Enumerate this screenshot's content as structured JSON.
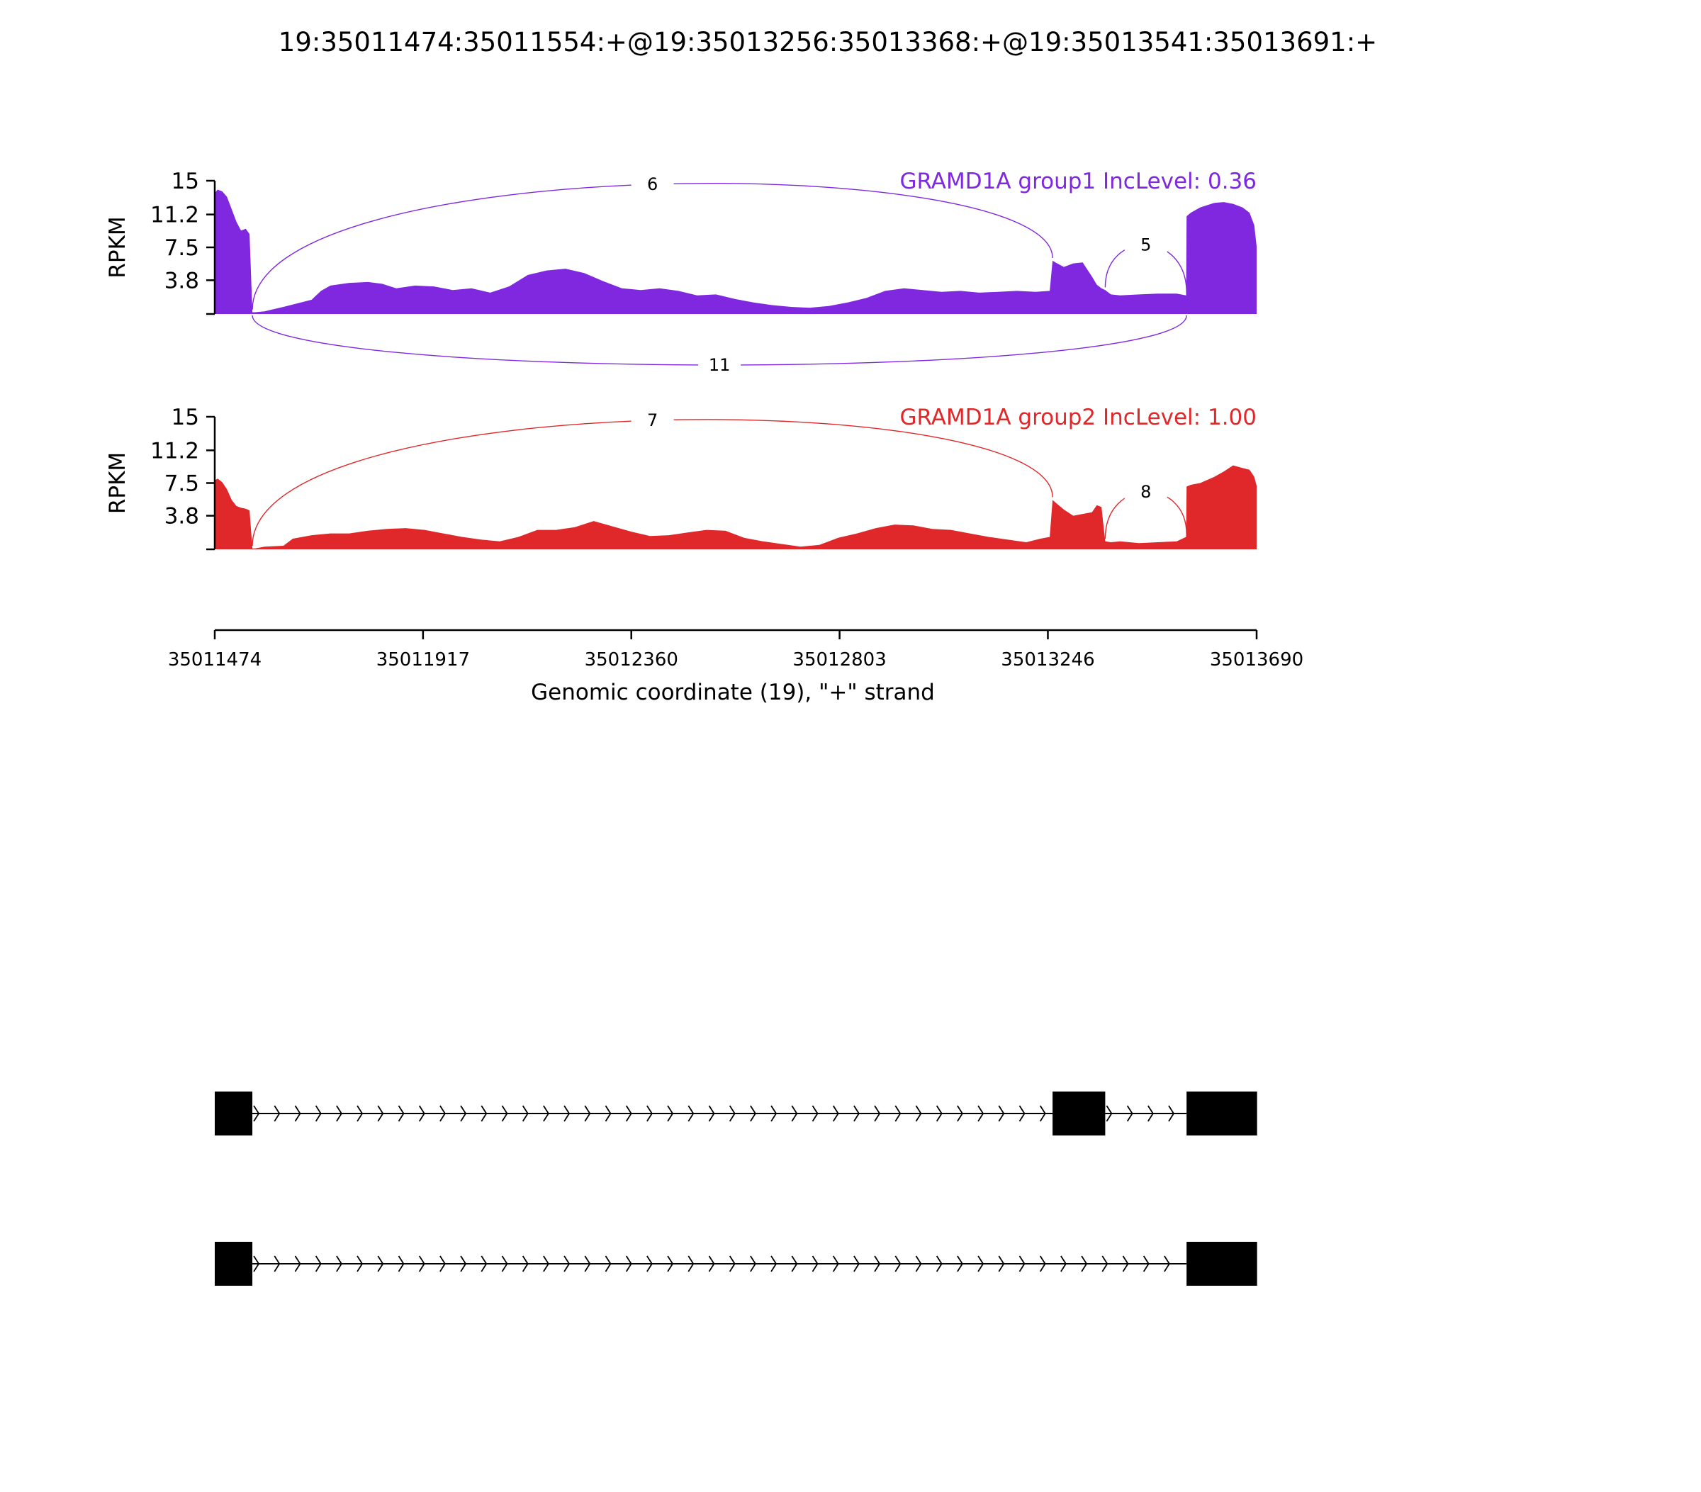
{
  "title": "19:35011474:35011554:+@19:35013256:35013368:+@19:35013541:35013691:+",
  "colors": {
    "group1": "#7f28e0",
    "group2": "#e0282a",
    "axis": "#000000",
    "exon": "#000000"
  },
  "chart_data": {
    "type": "area",
    "subtype": "sashimi",
    "xlabel": "Genomic coordinate (19), \"+\" strand",
    "xlim": [
      35011474,
      35013690
    ],
    "xticks": [
      35011474,
      35011917,
      35012360,
      35012803,
      35013246,
      35013690
    ],
    "xtick_labels": [
      "35011474",
      "35011917",
      "35012360",
      "35012803",
      "35013246",
      "35013690"
    ],
    "ylabel": "RPKM",
    "ylim": [
      0,
      15
    ],
    "yticks": [
      3.8,
      7.5,
      11.2,
      15
    ],
    "ytick_labels": [
      "3.8",
      "7.5",
      "11.2",
      "15"
    ],
    "exons": [
      [
        35011474,
        35011554
      ],
      [
        35013256,
        35013368
      ],
      [
        35013541,
        35013691
      ]
    ],
    "tracks": [
      {
        "label": "GRAMD1A group1 IncLevel: 0.36",
        "color": "#7f28e0",
        "coverage_x": [
          35011474,
          35011480,
          35011490,
          35011500,
          35011510,
          35011520,
          35011530,
          35011540,
          35011548,
          35011554,
          35011560,
          35011580,
          35011620,
          35011680,
          35011700,
          35011720,
          35011760,
          35011800,
          35011830,
          35011860,
          35011900,
          35011940,
          35011980,
          35012020,
          35012060,
          35012100,
          35012140,
          35012180,
          35012220,
          35012260,
          35012300,
          35012340,
          35012380,
          35012420,
          35012460,
          35012500,
          35012540,
          35012580,
          35012620,
          35012660,
          35012700,
          35012740,
          35012780,
          35012820,
          35012860,
          35012900,
          35012940,
          35012980,
          35013020,
          35013060,
          35013100,
          35013140,
          35013180,
          35013220,
          35013250,
          35013256,
          35013262,
          35013280,
          35013300,
          35013320,
          35013340,
          35013350,
          35013360,
          35013368,
          35013380,
          35013400,
          35013440,
          35013480,
          35013520,
          35013540,
          35013541,
          35013550,
          35013570,
          35013600,
          35013620,
          35013640,
          35013660,
          35013675,
          35013685,
          35013690
        ],
        "coverage_y": [
          13.6,
          14.0,
          13.8,
          13.2,
          11.8,
          10.4,
          9.4,
          9.6,
          9.0,
          0.2,
          0.2,
          0.3,
          0.8,
          1.6,
          2.6,
          3.2,
          3.5,
          3.6,
          3.4,
          2.9,
          3.2,
          3.1,
          2.7,
          2.9,
          2.4,
          3.1,
          4.4,
          4.9,
          5.1,
          4.6,
          3.7,
          2.9,
          2.7,
          2.9,
          2.6,
          2.1,
          2.2,
          1.7,
          1.3,
          1.0,
          0.8,
          0.7,
          0.9,
          1.3,
          1.8,
          2.6,
          2.9,
          2.7,
          2.5,
          2.6,
          2.4,
          2.5,
          2.6,
          2.5,
          2.6,
          6.0,
          5.8,
          5.3,
          5.7,
          5.8,
          4.2,
          3.3,
          2.9,
          2.7,
          2.2,
          2.1,
          2.2,
          2.3,
          2.3,
          2.1,
          11.0,
          11.4,
          12.0,
          12.5,
          12.6,
          12.4,
          12.0,
          11.4,
          10.0,
          7.6
        ],
        "junctions": [
          {
            "start": 35011554,
            "end": 35013256,
            "count": "6",
            "side": "top"
          },
          {
            "start": 35013368,
            "end": 35013541,
            "count": "5",
            "side": "top"
          },
          {
            "start": 35011554,
            "end": 35013541,
            "count": "11",
            "side": "bottom"
          }
        ]
      },
      {
        "label": "GRAMD1A group2 IncLevel: 1.00",
        "color": "#e0282a",
        "coverage_x": [
          35011474,
          35011480,
          35011490,
          35011500,
          35011510,
          35011520,
          35011530,
          35011540,
          35011548,
          35011554,
          35011560,
          35011580,
          35011620,
          35011640,
          35011680,
          35011720,
          35011760,
          35011800,
          35011840,
          35011880,
          35011920,
          35011960,
          35012000,
          35012040,
          35012080,
          35012120,
          35012160,
          35012200,
          35012240,
          35012280,
          35012320,
          35012360,
          35012400,
          35012440,
          35012480,
          35012520,
          35012560,
          35012600,
          35012640,
          35012680,
          35012720,
          35012760,
          35012800,
          35012840,
          35012880,
          35012920,
          35012960,
          35013000,
          35013040,
          35013080,
          35013120,
          35013160,
          35013200,
          35013230,
          35013250,
          35013256,
          35013262,
          35013280,
          35013300,
          35013320,
          35013340,
          35013350,
          35013360,
          35013368,
          35013380,
          35013400,
          35013440,
          35013480,
          35013520,
          35013540,
          35013541,
          35013550,
          35013570,
          35013600,
          35013620,
          35013640,
          35013660,
          35013675,
          35013685,
          35013690
        ],
        "coverage_y": [
          7.8,
          8.0,
          7.6,
          6.8,
          5.6,
          4.9,
          4.7,
          4.6,
          4.4,
          0.1,
          0.1,
          0.3,
          0.4,
          1.2,
          1.6,
          1.8,
          1.8,
          2.1,
          2.3,
          2.4,
          2.2,
          1.8,
          1.4,
          1.1,
          0.9,
          1.4,
          2.2,
          2.2,
          2.5,
          3.2,
          2.6,
          2.0,
          1.5,
          1.6,
          1.9,
          2.2,
          2.1,
          1.3,
          0.9,
          0.6,
          0.3,
          0.5,
          1.3,
          1.8,
          2.4,
          2.8,
          2.7,
          2.3,
          2.2,
          1.8,
          1.4,
          1.1,
          0.8,
          1.2,
          1.4,
          5.6,
          5.3,
          4.5,
          3.8,
          4.0,
          4.2,
          5.0,
          4.8,
          0.9,
          0.8,
          0.9,
          0.7,
          0.8,
          0.9,
          1.4,
          7.1,
          7.3,
          7.5,
          8.2,
          8.8,
          9.5,
          9.2,
          9.0,
          8.2,
          7.2
        ],
        "junctions": [
          {
            "start": 35011554,
            "end": 35013256,
            "count": "7",
            "side": "top"
          },
          {
            "start": 35013368,
            "end": 35013541,
            "count": "8",
            "side": "top"
          }
        ]
      }
    ],
    "transcripts": [
      {
        "exons": [
          [
            35011474,
            35011554
          ],
          [
            35013256,
            35013368
          ],
          [
            35013541,
            35013691
          ]
        ]
      },
      {
        "exons": [
          [
            35011474,
            35011554
          ],
          [
            35013541,
            35013691
          ]
        ]
      }
    ]
  }
}
